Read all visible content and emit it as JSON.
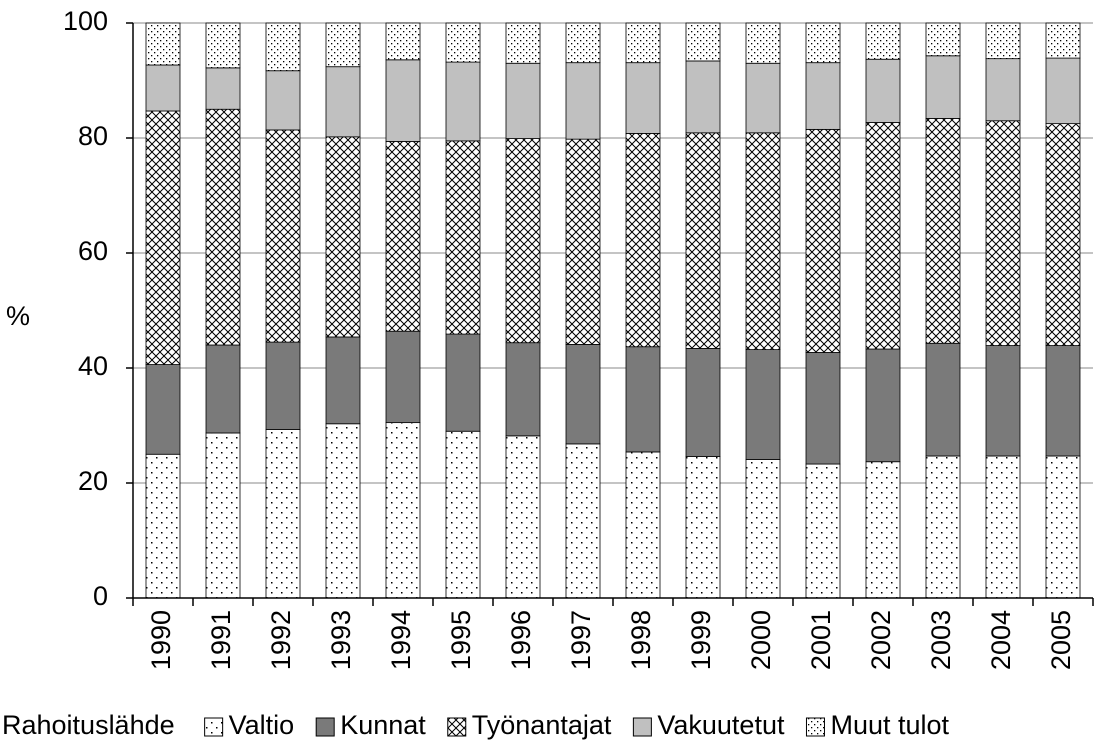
{
  "chart_data": {
    "type": "stacked_bar",
    "y_label": "%",
    "legend_title": "Rahoituslähde",
    "categories": [
      "1990",
      "1991",
      "1992",
      "1993",
      "1994",
      "1995",
      "1996",
      "1997",
      "1998",
      "1999",
      "2000",
      "2001",
      "2002",
      "2003",
      "2004",
      "2005"
    ],
    "series": [
      {
        "name": "Valtio",
        "color": "#ffffff",
        "pattern": "sparse-dots",
        "values": [
          25,
          28.7,
          29.3,
          30.3,
          30.5,
          29,
          28.2,
          26.8,
          25.4,
          24.6,
          24.1,
          23.3,
          23.7,
          24.7,
          24.7,
          24.7
        ]
      },
      {
        "name": "Kunnat",
        "color": "#7a7a7a",
        "pattern": null,
        "values": [
          15.6,
          15.3,
          15.2,
          15.1,
          15.9,
          16.9,
          16.2,
          17.3,
          18.3,
          18.8,
          19.1,
          19.4,
          19.6,
          19.6,
          19.2,
          19.2
        ]
      },
      {
        "name": "Työnantajat",
        "color": "#ffffff",
        "pattern": "crosshatch",
        "values": [
          44.1,
          41,
          36.9,
          34.8,
          33,
          33.6,
          35.5,
          35.7,
          37.1,
          37.5,
          37.7,
          38.8,
          39.4,
          39.1,
          39.1,
          38.6
        ]
      },
      {
        "name": "Vakuutetut",
        "color": "#c0c0c0",
        "pattern": null,
        "values": [
          8,
          7.2,
          10.3,
          12.2,
          14.2,
          13.7,
          13.1,
          13.3,
          12.3,
          12.5,
          12.1,
          11.6,
          11,
          10.9,
          10.8,
          11.4
        ]
      },
      {
        "name": "Muut tulot",
        "color": "#ffffff",
        "pattern": "dense-dots",
        "values": [
          7.3,
          7.8,
          8.3,
          7.6,
          6.4,
          6.8,
          7,
          6.9,
          6.9,
          6.6,
          7,
          6.9,
          6.3,
          5.7,
          6.2,
          6.1
        ]
      }
    ],
    "ylim": [
      0,
      100
    ],
    "yticks": [
      0,
      20,
      40,
      60,
      80,
      100
    ],
    "grid": true
  }
}
